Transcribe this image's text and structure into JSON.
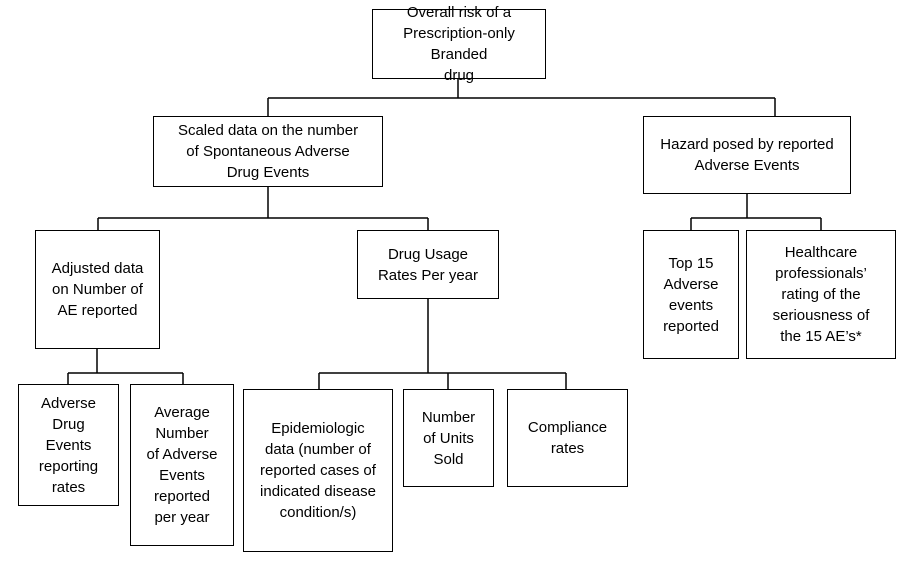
{
  "nodes": {
    "root": "Overall risk of a\nPrescription-only Branded\ndrug",
    "scaled": "Scaled data on the number\nof Spontaneous Adverse\nDrug Events",
    "hazard": "Hazard posed by reported\nAdverse Events",
    "adjusted": "Adjusted data\non Number of\nAE reported",
    "usage": "Drug Usage\nRates Per year",
    "top15": "Top 15\nAdverse\nevents\nreported",
    "healthcare": "Healthcare\nprofessionals’\nrating of the\nseriousness of\nthe 15 AE’s*",
    "ade_rates": "Adverse\nDrug\nEvents\nreporting\nrates",
    "avg_ae": "Average\nNumber\nof Adverse\nEvents\nreported\nper year",
    "epi": "Epidemiologic\ndata (number of\nreported cases of\nindicated disease\ncondition/s)",
    "units": "Number\nof Units\nSold",
    "compliance": "Compliance\nrates"
  }
}
